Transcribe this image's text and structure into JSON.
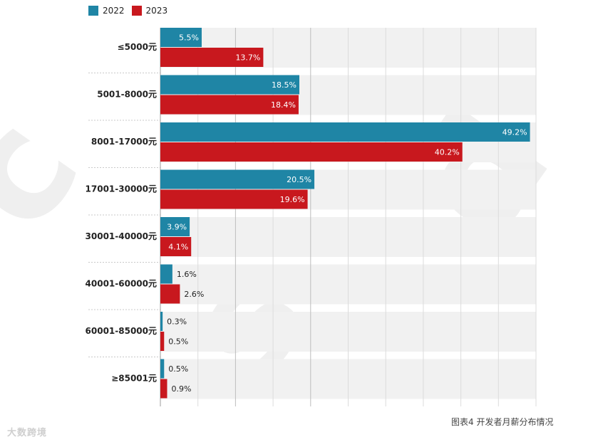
{
  "legend": [
    {
      "name": "2022",
      "color": "#1f85a5"
    },
    {
      "name": "2023",
      "color": "#c8181e"
    }
  ],
  "caption": "图表4 开发者月薪分布情况",
  "watermark_text": "大数跨境",
  "chart_data": {
    "type": "bar",
    "orientation": "horizontal",
    "categories": [
      "≤5000元",
      "5001-8000元",
      "8001-17000元",
      "17001-30000元",
      "30001-40000元",
      "40001-60000元",
      "60001-85000元",
      "≥85001元"
    ],
    "series": [
      {
        "name": "2022",
        "color": "#1f85a5",
        "values": [
          5.5,
          18.5,
          49.2,
          20.5,
          3.9,
          1.6,
          0.3,
          0.5
        ],
        "labels": [
          "5.5%",
          "18.5%",
          "49.2%",
          "20.5%",
          "3.9%",
          "1.6%",
          "0.3%",
          "0.5%"
        ]
      },
      {
        "name": "2023",
        "color": "#c8181e",
        "values": [
          13.7,
          18.4,
          40.2,
          19.6,
          4.1,
          2.6,
          0.5,
          0.9
        ],
        "labels": [
          "13.7%",
          "18.4%",
          "40.2%",
          "19.6%",
          "4.1%",
          "2.6%",
          "0.5%",
          "0.9%"
        ]
      }
    ],
    "xlim": [
      0,
      50
    ],
    "grid": true,
    "legend_position": "top-left",
    "title": "",
    "xlabel": "",
    "ylabel": ""
  }
}
